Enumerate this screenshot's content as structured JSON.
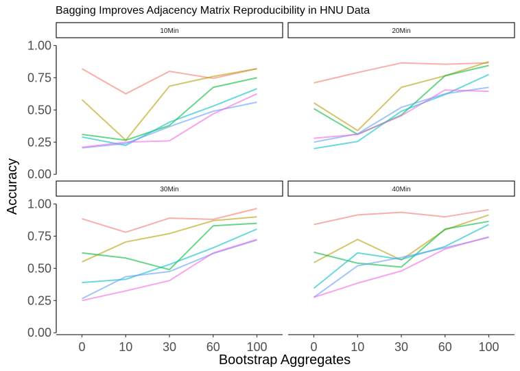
{
  "chart_data": {
    "type": "line",
    "title": "Bagging Improves Adjacency Matrix Reproducibility in HNU Data",
    "xlabel": "Bootstrap Aggregates",
    "ylabel": "Accuracy",
    "x": [
      "0",
      "10",
      "30",
      "60",
      "100"
    ],
    "yticks": [
      "0.00",
      "0.25",
      "0.50",
      "0.75",
      "1.00"
    ],
    "ylim": [
      -0.02,
      1.05
    ],
    "grid": false,
    "legend": "none",
    "colors": [
      "#F8766D",
      "#B79F00",
      "#00BA38",
      "#00BFC4",
      "#619CFF",
      "#F564E3"
    ],
    "panels": [
      {
        "label": "10Min",
        "series": [
          {
            "values": [
              0.82,
              0.625,
              0.8,
              0.745,
              0.82
            ]
          },
          {
            "values": [
              0.58,
              0.265,
              0.685,
              0.76,
              0.82
            ]
          },
          {
            "values": [
              0.31,
              0.265,
              0.38,
              0.675,
              0.75
            ]
          },
          {
            "values": [
              0.29,
              0.225,
              0.405,
              0.53,
              0.665
            ]
          },
          {
            "values": [
              0.205,
              0.24,
              0.37,
              0.49,
              0.56
            ]
          },
          {
            "values": [
              0.21,
              0.25,
              0.26,
              0.47,
              0.625
            ]
          }
        ]
      },
      {
        "label": "20Min",
        "series": [
          {
            "values": [
              0.71,
              0.79,
              0.865,
              0.855,
              0.865
            ]
          },
          {
            "values": [
              0.555,
              0.34,
              0.675,
              0.765,
              0.875
            ]
          },
          {
            "values": [
              0.51,
              0.31,
              0.46,
              0.765,
              0.845
            ]
          },
          {
            "values": [
              0.2,
              0.255,
              0.49,
              0.62,
              0.775
            ]
          },
          {
            "values": [
              0.25,
              0.315,
              0.52,
              0.625,
              0.675
            ]
          },
          {
            "values": [
              0.28,
              0.31,
              0.455,
              0.655,
              0.645
            ]
          }
        ]
      },
      {
        "label": "30Min",
        "series": [
          {
            "values": [
              0.885,
              0.78,
              0.89,
              0.88,
              0.965
            ]
          },
          {
            "values": [
              0.55,
              0.705,
              0.77,
              0.87,
              0.9
            ]
          },
          {
            "values": [
              0.62,
              0.58,
              0.49,
              0.83,
              0.85
            ]
          },
          {
            "values": [
              0.39,
              0.415,
              0.53,
              0.66,
              0.805
            ]
          },
          {
            "values": [
              0.265,
              0.435,
              0.475,
              0.615,
              0.72
            ]
          },
          {
            "values": [
              0.25,
              0.325,
              0.405,
              0.62,
              0.725
            ]
          }
        ]
      },
      {
        "label": "40Min",
        "series": [
          {
            "values": [
              0.84,
              0.915,
              0.935,
              0.9,
              0.955
            ]
          },
          {
            "values": [
              0.545,
              0.725,
              0.565,
              0.8,
              0.915
            ]
          },
          {
            "values": [
              0.625,
              0.54,
              0.51,
              0.805,
              0.865
            ]
          },
          {
            "values": [
              0.345,
              0.62,
              0.57,
              0.67,
              0.84
            ]
          },
          {
            "values": [
              0.275,
              0.52,
              0.585,
              0.66,
              0.74
            ]
          },
          {
            "values": [
              0.275,
              0.385,
              0.48,
              0.65,
              0.745
            ]
          }
        ]
      }
    ]
  }
}
